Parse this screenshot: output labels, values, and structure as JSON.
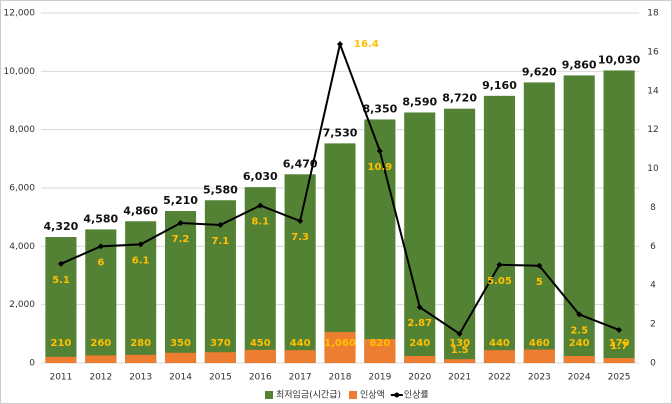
{
  "chart_data": {
    "type": "bar",
    "categories": [
      "2011",
      "2012",
      "2013",
      "2014",
      "2015",
      "2016",
      "2017",
      "2018",
      "2019",
      "2020",
      "2021",
      "2022",
      "2023",
      "2024",
      "2025"
    ],
    "series": [
      {
        "name": "최저임금(시간급)",
        "color": "#548235",
        "values": [
          4320,
          4580,
          4860,
          5210,
          5580,
          6030,
          6470,
          7530,
          8350,
          8590,
          8720,
          9160,
          9620,
          9860,
          10030
        ],
        "value_labels": [
          "4,320",
          "4,580",
          "4,860",
          "5,210",
          "5,580",
          "6,030",
          "6,470",
          "7,530",
          "8,350",
          "8,590",
          "8,720",
          "9,160",
          "9,620",
          "9,860",
          "10,030"
        ]
      },
      {
        "name": "인상액",
        "color": "#ed7d31",
        "values": [
          210,
          260,
          280,
          350,
          370,
          450,
          440,
          1060,
          820,
          240,
          130,
          440,
          460,
          240,
          170
        ],
        "value_labels": [
          "210",
          "260",
          "280",
          "350",
          "370",
          "450",
          "440",
          "1,060",
          "820",
          "240",
          "130",
          "440",
          "460",
          "240",
          "170"
        ]
      },
      {
        "name": "인상률",
        "type": "line",
        "color": "#000000",
        "axis": "y2",
        "values": [
          5.1,
          6,
          6.1,
          7.2,
          7.1,
          8.1,
          7.3,
          16.4,
          10.9,
          2.87,
          1.5,
          5.05,
          5,
          2.5,
          1.7
        ]
      }
    ],
    "ylim": [
      0,
      12000
    ],
    "yticks": [
      0,
      {
        "value": 2000,
        "label": "2,000"
      },
      {
        "value": 4000,
        "label": "4,000"
      },
      {
        "value": 6000,
        "label": "6,000"
      },
      {
        "value": 8000,
        "label": "8,000"
      },
      {
        "value": 10000,
        "label": "10,000"
      },
      {
        "value": 12000,
        "label": "12,000"
      }
    ],
    "y2lim": [
      0,
      18
    ],
    "y2ticks": [
      0,
      2,
      4,
      6,
      8,
      10,
      12,
      14,
      16,
      18
    ],
    "grid": true,
    "legend": "bottom"
  }
}
